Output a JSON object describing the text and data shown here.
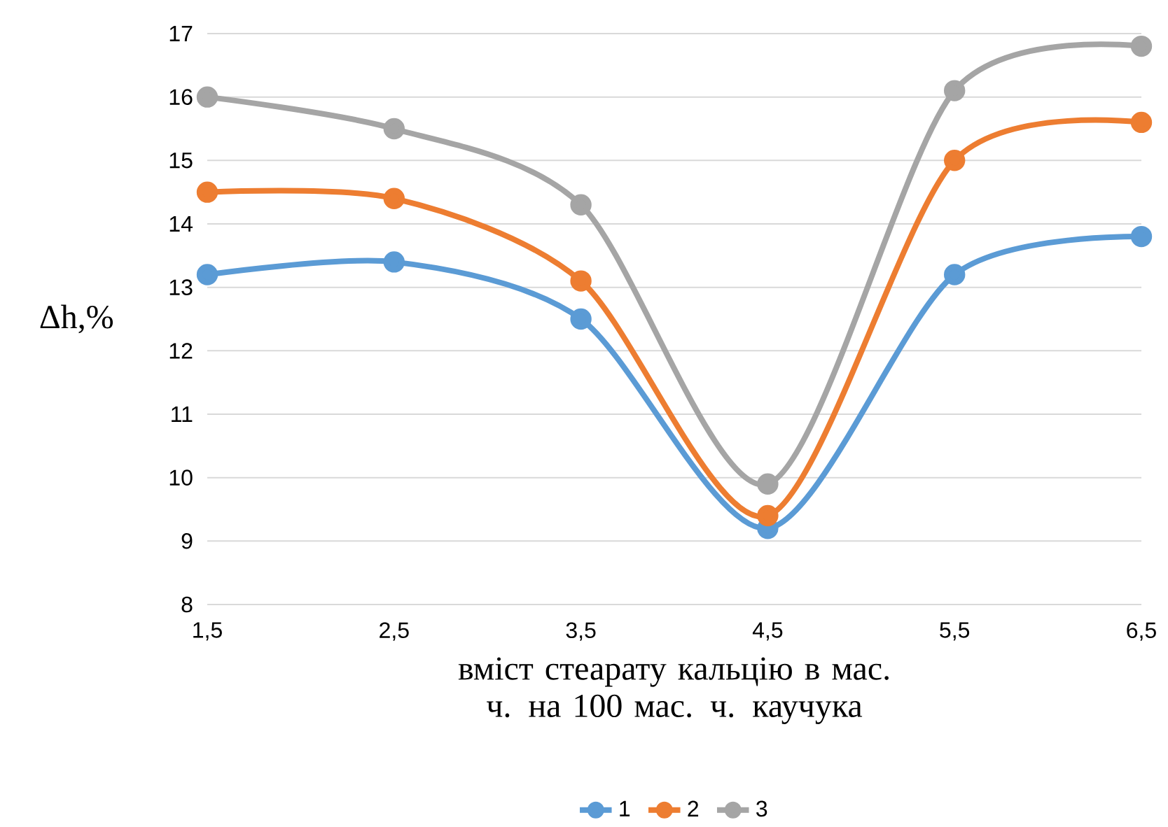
{
  "chart_data": {
    "type": "line",
    "xlabel": "вміст стеарату кальцію в мас. ч. на 100 мас. ч. каучука",
    "ylabel": "Δh,%",
    "categories": [
      "1,5",
      "2,5",
      "3,5",
      "4,5",
      "5,5",
      "6,5"
    ],
    "series": [
      {
        "name": "1",
        "color": "#5b9bd5",
        "values": [
          13.2,
          13.4,
          12.5,
          9.2,
          13.2,
          13.8
        ]
      },
      {
        "name": "2",
        "color": "#ed7d31",
        "values": [
          14.5,
          14.4,
          13.1,
          9.4,
          15.0,
          15.6
        ]
      },
      {
        "name": "3",
        "color": "#a5a5a5",
        "values": [
          16.0,
          15.5,
          14.3,
          9.9,
          16.1,
          16.8
        ]
      }
    ],
    "ylim": [
      8,
      17
    ],
    "yticks": [
      8,
      9,
      10,
      11,
      12,
      13,
      14,
      15,
      16,
      17
    ],
    "grid": "y",
    "legend": "bottom",
    "marker": "circle",
    "line_style": "solid"
  }
}
